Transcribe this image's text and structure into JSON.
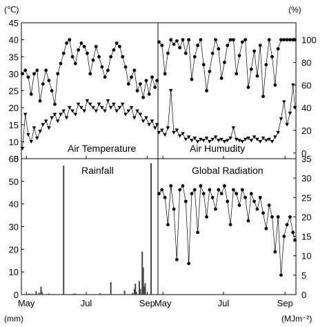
{
  "figure": {
    "units": {
      "temperature": "(℃)",
      "humidity": "(%)",
      "rainfall": "(mm)",
      "radiation": "(MJm⁻²)"
    },
    "colors": {
      "ink": "#000000",
      "bar": "#444444",
      "background": "#ffffff"
    }
  },
  "chart_data": [
    {
      "type": "line",
      "panel": "top-left",
      "title": "Air Temperature",
      "ylim": [
        5,
        45
      ],
      "yticks": [
        5,
        10,
        15,
        20,
        25,
        30,
        35,
        40,
        45
      ],
      "xlim": [
        120,
        259
      ],
      "xticks": [
        {
          "label": "May",
          "x": 125
        },
        {
          "label": "Jul",
          "x": 186
        },
        {
          "label": "Sep",
          "x": 248
        }
      ],
      "series": [
        {
          "marker": "circle",
          "x": [
            121,
            124,
            127,
            130,
            133,
            136,
            139,
            142,
            145,
            148,
            151,
            154,
            157,
            160,
            163,
            166,
            169,
            172,
            175,
            178,
            181,
            184,
            187,
            190,
            193,
            196,
            199,
            202,
            205,
            208,
            211,
            214,
            217,
            220,
            223,
            226,
            229,
            232,
            235,
            238,
            241,
            244,
            247,
            250,
            253,
            256,
            258
          ],
          "y": [
            30,
            31,
            29,
            24,
            30,
            31,
            22,
            27,
            31,
            28,
            25,
            21,
            30,
            33,
            36,
            39,
            40,
            35,
            33,
            37,
            39,
            38,
            36,
            30,
            34,
            38,
            35,
            32,
            29,
            31,
            35,
            37,
            39,
            38,
            35,
            32,
            27,
            29,
            31,
            25,
            27,
            23,
            28,
            24,
            29,
            26,
            28
          ]
        },
        {
          "marker": "triangle-down",
          "x": [
            121,
            124,
            127,
            130,
            133,
            136,
            139,
            142,
            145,
            148,
            151,
            154,
            157,
            160,
            163,
            166,
            169,
            172,
            175,
            178,
            181,
            184,
            187,
            190,
            193,
            196,
            199,
            202,
            205,
            208,
            211,
            214,
            217,
            220,
            223,
            226,
            229,
            232,
            235,
            238,
            241,
            244,
            247,
            250,
            253,
            256,
            258
          ],
          "y": [
            8,
            18,
            12,
            10,
            14,
            11,
            13,
            15,
            16,
            14,
            17,
            18,
            16,
            18,
            19,
            17,
            20,
            19,
            18,
            21,
            20,
            19,
            22,
            21,
            20,
            19,
            21,
            20,
            19,
            22,
            20,
            21,
            19,
            20,
            21,
            18,
            19,
            20,
            17,
            19,
            18,
            16,
            17,
            15,
            16,
            14,
            15
          ]
        }
      ]
    },
    {
      "type": "line",
      "panel": "top-right",
      "title": "Air Humudity",
      "ylim": [
        -5,
        115
      ],
      "yticks": [
        0,
        20,
        40,
        60,
        80,
        100
      ],
      "xlim": [
        120,
        259
      ],
      "xticks": [
        {
          "label": "May",
          "x": 125
        },
        {
          "label": "Jul",
          "x": 186
        },
        {
          "label": "Sep",
          "x": 248
        }
      ],
      "series": [
        {
          "marker": "circle",
          "x": [
            121,
            124,
            127,
            130,
            133,
            136,
            139,
            142,
            145,
            148,
            151,
            154,
            157,
            160,
            163,
            166,
            169,
            172,
            175,
            178,
            181,
            184,
            187,
            190,
            193,
            196,
            199,
            202,
            205,
            208,
            211,
            214,
            217,
            220,
            223,
            226,
            229,
            232,
            235,
            238,
            241,
            244,
            247,
            250,
            253,
            256,
            258
          ],
          "y": [
            98,
            95,
            70,
            88,
            100,
            96,
            99,
            93,
            100,
            88,
            100,
            65,
            85,
            95,
            100,
            78,
            55,
            72,
            88,
            100,
            92,
            66,
            80,
            95,
            100,
            100,
            70,
            86,
            98,
            100,
            58,
            74,
            90,
            68,
            95,
            50,
            78,
            100,
            85,
            60,
            92,
            100,
            100,
            100,
            100,
            100,
            100
          ]
        },
        {
          "marker": "triangle-down",
          "x": [
            121,
            124,
            127,
            130,
            133,
            136,
            139,
            142,
            145,
            148,
            151,
            154,
            157,
            160,
            163,
            166,
            169,
            172,
            175,
            178,
            181,
            184,
            187,
            190,
            193,
            196,
            199,
            202,
            205,
            208,
            211,
            214,
            217,
            220,
            223,
            226,
            229,
            232,
            235,
            238,
            241,
            244,
            247,
            250,
            253,
            256,
            258
          ],
          "y": [
            18,
            20,
            16,
            22,
            55,
            18,
            20,
            15,
            17,
            12,
            14,
            11,
            13,
            10,
            12,
            11,
            13,
            10,
            12,
            14,
            11,
            12,
            10,
            11,
            13,
            22,
            12,
            11,
            10,
            12,
            13,
            11,
            14,
            12,
            10,
            13,
            11,
            12,
            10,
            14,
            18,
            30,
            45,
            25,
            35,
            60,
            40
          ]
        }
      ]
    },
    {
      "type": "bar",
      "panel": "bottom-left",
      "title": "Rainfall",
      "ylim": [
        0,
        60
      ],
      "yticks": [
        0,
        10,
        20,
        30,
        40,
        50,
        60
      ],
      "xlim": [
        120,
        259
      ],
      "xticks": [
        {
          "label": "May",
          "x": 125
        },
        {
          "label": "Jul",
          "x": 186
        },
        {
          "label": "Sep",
          "x": 248
        }
      ],
      "x": [
        128,
        131,
        135,
        138,
        140,
        141,
        148,
        163,
        173,
        175,
        200,
        211,
        225,
        233,
        235,
        236,
        237,
        240,
        241,
        243,
        244,
        245,
        246,
        252
      ],
      "values": [
        0.5,
        0.4,
        1.5,
        0.8,
        3.5,
        1.2,
        0.5,
        57,
        0.4,
        0.5,
        0.6,
        5.5,
        1.8,
        0.7,
        2.5,
        4.8,
        1.2,
        6,
        2.5,
        19,
        12,
        3.5,
        5,
        58
      ]
    },
    {
      "type": "line",
      "panel": "bottom-right",
      "title": "Global Radiation",
      "ylim": [
        0,
        35
      ],
      "yticks": [
        0,
        5,
        10,
        15,
        20,
        25,
        30,
        35
      ],
      "xlim": [
        120,
        259
      ],
      "xticks": [
        {
          "label": "May",
          "x": 125
        },
        {
          "label": "Jul",
          "x": 186
        },
        {
          "label": "Sep",
          "x": 248
        }
      ],
      "series": [
        {
          "marker": "circle",
          "x": [
            121,
            124,
            127,
            130,
            133,
            136,
            139,
            142,
            145,
            148,
            151,
            154,
            157,
            160,
            163,
            166,
            169,
            172,
            175,
            178,
            181,
            184,
            187,
            190,
            193,
            196,
            199,
            202,
            205,
            208,
            211,
            214,
            217,
            220,
            223,
            226,
            229,
            232,
            235,
            238,
            241,
            244,
            247,
            250,
            253,
            256,
            258
          ],
          "y": [
            26,
            27,
            25,
            18,
            28,
            22,
            9,
            27,
            28,
            24,
            8,
            26,
            27,
            16,
            28,
            26,
            20,
            27,
            25,
            22,
            27,
            26,
            28,
            24,
            18,
            27,
            26,
            23,
            27,
            25,
            19,
            26,
            24,
            22,
            25,
            21,
            17,
            23,
            20,
            11,
            20,
            5,
            15,
            18,
            20,
            16,
            14
          ]
        }
      ]
    }
  ]
}
